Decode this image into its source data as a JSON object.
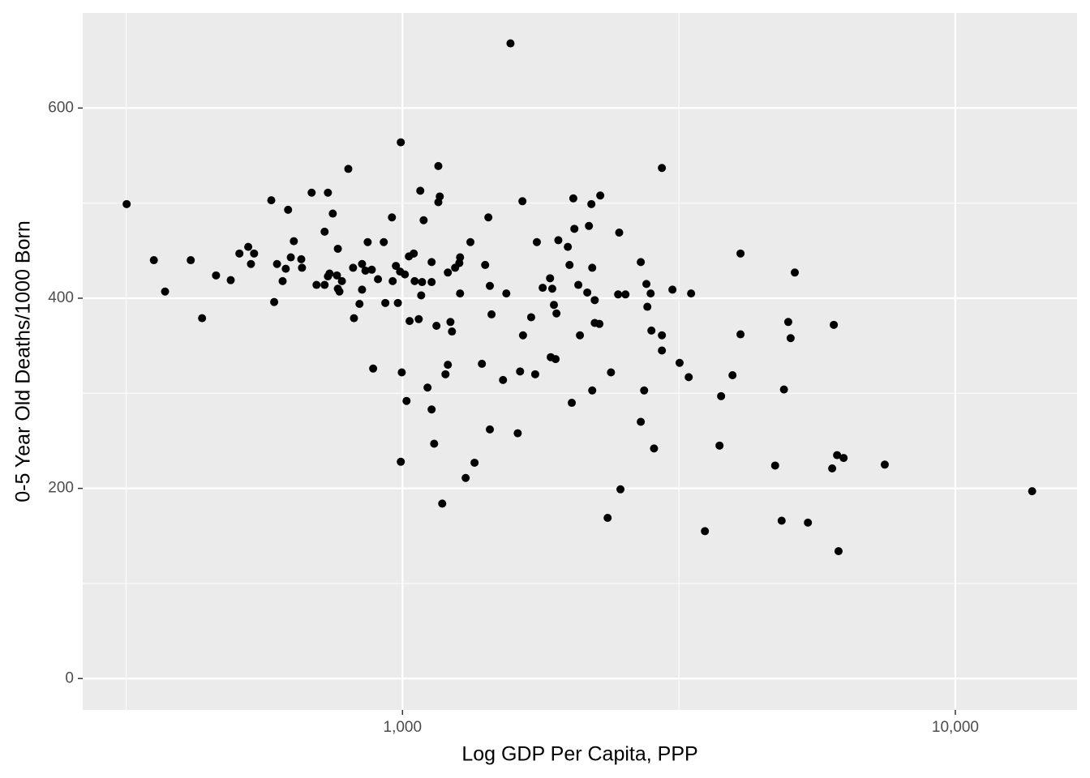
{
  "chart_data": {
    "type": "scatter",
    "x_label": "Log GDP Per Capita, PPP",
    "y_label": "0-5 Year Old Deaths/1000 Born",
    "x_scale": "log",
    "xlim": [
      264,
      16600
    ],
    "ylim": [
      -33,
      700
    ],
    "xticks": [
      {
        "value": 1000,
        "label": "1,000"
      },
      {
        "value": 10000,
        "label": "10,000"
      }
    ],
    "yticks": [
      0,
      200,
      400,
      600
    ],
    "grid": true,
    "color": "#000000",
    "x": [
      317,
      355,
      372,
      414,
      434,
      460,
      489,
      507,
      526,
      532,
      539,
      579,
      586,
      593,
      607,
      615,
      621,
      628,
      636,
      656,
      658,
      685,
      699,
      723,
      723,
      733,
      733,
      738,
      748,
      761,
      764,
      764,
      769,
      777,
      798,
      814,
      817,
      836,
      845,
      845,
      857,
      865,
      880,
      885,
      903,
      925,
      931,
      957,
      960,
      973,
      981,
      990,
      993,
      993,
      997,
      1010,
      1017,
      1027,
      1030,
      1048,
      1052,
      1070,
      1077,
      1081,
      1085,
      1092,
      1110,
      1129,
      1129,
      1129,
      1141,
      1152,
      1161,
      1161,
      1168,
      1180,
      1196,
      1208,
      1208,
      1221,
      1229,
      1245,
      1267,
      1271,
      1271,
      1301,
      1327,
      1350,
      1392,
      1411,
      1430,
      1439,
      1439,
      1449,
      1520,
      1541,
      1568,
      1616,
      1632,
      1648,
      1652,
      1709,
      1738,
      1750,
      1793,
      1849,
      1854,
      1866,
      1879,
      1892,
      1899,
      1914,
      1991,
      2005,
      2024,
      2037,
      2046,
      2080,
      2094,
      2159,
      2174,
      2196,
      2204,
      2204,
      2227,
      2227,
      2271,
      2279,
      2350,
      2383,
      2455,
      2466,
      2479,
      2531,
      2698,
      2698,
      2736,
      2762,
      2773,
      2811,
      2820,
      2851,
      2946,
      2946,
      2946,
      3078,
      3171,
      3294,
      3327,
      3524,
      3745,
      3770,
      3953,
      4087,
      4087,
      4721,
      4851,
      4898,
      4986,
      5036,
      5124,
      5412,
      5987,
      6028,
      6111,
      6148,
      6279,
      7454,
      13770
    ],
    "values": [
      499,
      440,
      407,
      440,
      379,
      424,
      419,
      447,
      454,
      436,
      447,
      503,
      396,
      436,
      418,
      431,
      493,
      443,
      460,
      441,
      432,
      511,
      414,
      470,
      414,
      423,
      511,
      426,
      489,
      424,
      452,
      410,
      407,
      418,
      536,
      432,
      379,
      394,
      436,
      409,
      429,
      459,
      430,
      326,
      420,
      459,
      395,
      485,
      418,
      434,
      395,
      428,
      564,
      228,
      322,
      425,
      292,
      444,
      376,
      447,
      418,
      378,
      513,
      403,
      417,
      482,
      306,
      417,
      283,
      438,
      247,
      371,
      539,
      501,
      507,
      184,
      320,
      330,
      427,
      375,
      365,
      432,
      437,
      443,
      405,
      211,
      459,
      227,
      331,
      435,
      485,
      262,
      413,
      383,
      314,
      405,
      668,
      258,
      323,
      502,
      361,
      380,
      320,
      459,
      411,
      421,
      338,
      410,
      393,
      336,
      384,
      461,
      454,
      435,
      290,
      505,
      473,
      414,
      361,
      406,
      476,
      499,
      432,
      303,
      398,
      374,
      373,
      508,
      169,
      322,
      404,
      469,
      199,
      404,
      438,
      270,
      303,
      415,
      391,
      405,
      366,
      242,
      537,
      345,
      361,
      409,
      332,
      317,
      405,
      155,
      245,
      297,
      319,
      447,
      362,
      224,
      166,
      304,
      375,
      358,
      427,
      164,
      221,
      372,
      235,
      134,
      232,
      225,
      197
    ]
  }
}
